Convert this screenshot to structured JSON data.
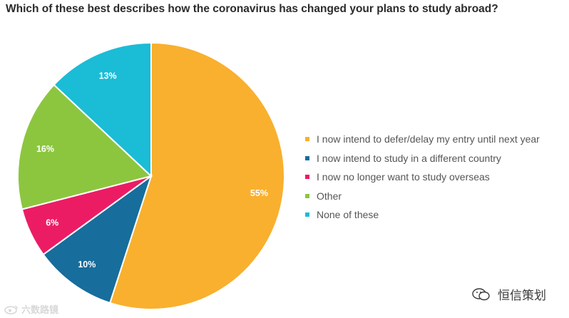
{
  "chart_data": {
    "type": "pie",
    "title": "Which of these best describes how the coronavirus has changed your plans to study abroad?",
    "slices": [
      {
        "label": "I now intend to defer/delay my entry until next year",
        "value": 55,
        "value_label": "55%",
        "color": "#f9b02e"
      },
      {
        "label": "I now intend to study in a different country",
        "value": 10,
        "value_label": "10%",
        "color": "#176d9c"
      },
      {
        "label": "I now no longer want to study overseas",
        "value": 6,
        "value_label": "6%",
        "color": "#ec1c64"
      },
      {
        "label": "Other",
        "value": 16,
        "value_label": "16%",
        "color": "#8cc63f"
      },
      {
        "label": "None of these",
        "value": 13,
        "value_label": "13%",
        "color": "#1bbcd6"
      }
    ],
    "start": "12 o'clock",
    "direction": "clockwise",
    "legend_position": "right"
  },
  "watermarks": {
    "left": "六数路镜",
    "right": "恒信策划"
  },
  "icons": {
    "left_watermark": "weibo-icon",
    "right_watermark": "wechat-icon"
  }
}
